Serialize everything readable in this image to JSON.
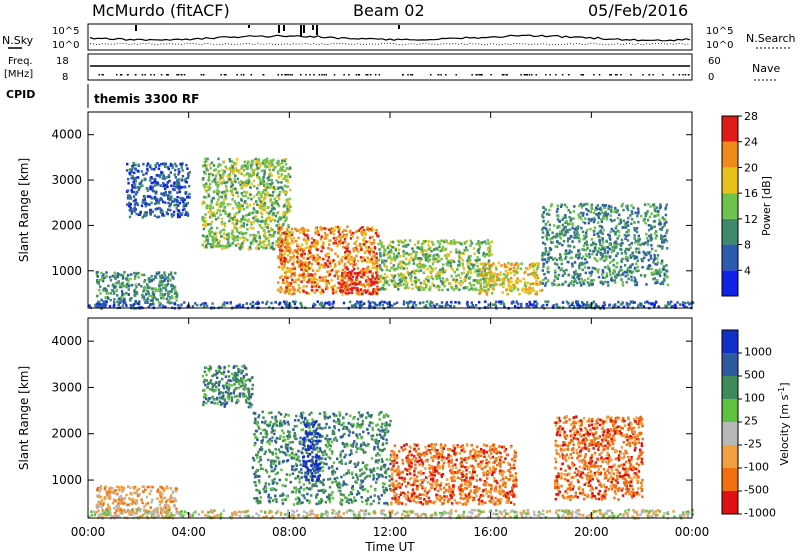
{
  "header": {
    "station": "McMurdo (fitACF)",
    "beam": "Beam 02",
    "date": "05/Feb/2016"
  },
  "top_panels": {
    "nsky_label": "N.Sky",
    "nsky_ticks": [
      "10^5",
      "10^0"
    ],
    "nsearch_label": "N.Search",
    "nsearch_ticks": [
      "10^5",
      "10^0"
    ],
    "freq_label_line1": "Freq.",
    "freq_label_line2": "[MHz]",
    "freq_ticks": [
      "18",
      "8"
    ],
    "nave_label": "Nave",
    "nave_ticks": [
      "60",
      "0"
    ],
    "cpid_label": "CPID",
    "cpid_value": "themis 3300 RF"
  },
  "chart_data": [
    {
      "type": "heatmap",
      "name": "power-panel",
      "ylabel": "Slant Range [km]",
      "xlabel": "",
      "ylim": [
        180,
        4500
      ],
      "xlim": [
        0,
        24
      ],
      "yticks": [
        "1000",
        "2000",
        "3000",
        "4000"
      ],
      "colorbar": {
        "label": "Power [dB]",
        "ticks": [
          "4",
          "8",
          "12",
          "16",
          "20",
          "24",
          "28"
        ],
        "colors": [
          "#1022e6",
          "#2d5cae",
          "#3e8a6a",
          "#6cc24a",
          "#e8c21a",
          "#f08a1a",
          "#e11a1a"
        ]
      },
      "regions": [
        {
          "t0": 0.3,
          "t1": 3.5,
          "r0": 300,
          "r1": 1000,
          "level": 2
        },
        {
          "t0": 1.5,
          "t1": 4.0,
          "r0": 2200,
          "r1": 3400,
          "level": 1
        },
        {
          "t0": 4.5,
          "t1": 8.0,
          "r0": 1500,
          "r1": 3500,
          "level": 3
        },
        {
          "t0": 7.5,
          "t1": 11.5,
          "r0": 500,
          "r1": 2000,
          "level": 5
        },
        {
          "t0": 10.0,
          "t1": 11.5,
          "r0": 500,
          "r1": 1000,
          "level": 6
        },
        {
          "t0": 11.5,
          "t1": 16.0,
          "r0": 600,
          "r1": 1700,
          "level": 3
        },
        {
          "t0": 15.5,
          "t1": 18.0,
          "r0": 500,
          "r1": 1200,
          "level": 4
        },
        {
          "t0": 18.0,
          "t1": 23.0,
          "r0": 700,
          "r1": 2500,
          "level": 2
        },
        {
          "t0": 0.0,
          "t1": 24.0,
          "r0": 200,
          "r1": 350,
          "level": 1
        }
      ]
    },
    {
      "type": "heatmap",
      "name": "velocity-panel",
      "ylabel": "Slant Range [km]",
      "xlabel": "Time UT",
      "ylim": [
        180,
        4500
      ],
      "xlim": [
        0,
        24
      ],
      "yticks": [
        "1000",
        "2000",
        "3000",
        "4000"
      ],
      "xticks": [
        "00:00",
        "04:00",
        "08:00",
        "12:00",
        "16:00",
        "20:00",
        "00:00"
      ],
      "colorbar": {
        "label": "Velocity [m s^-1]",
        "ticks": [
          "1000",
          "500",
          "100",
          "25",
          "-25",
          "-100",
          "-500",
          "-1000"
        ],
        "colors": [
          "#1030c8",
          "#2f5a9e",
          "#3f8a5a",
          "#60c040",
          "#b8b8b8",
          "#f0a040",
          "#f07010",
          "#e01010"
        ]
      },
      "regions": [
        {
          "t0": 0.3,
          "t1": 3.5,
          "r0": 300,
          "r1": 900,
          "level": 5
        },
        {
          "t0": 4.5,
          "t1": 6.5,
          "r0": 2600,
          "r1": 3500,
          "level": 2
        },
        {
          "t0": 6.5,
          "t1": 12.0,
          "r0": 500,
          "r1": 2500,
          "level": 2
        },
        {
          "t0": 8.5,
          "t1": 9.2,
          "r0": 1000,
          "r1": 2300,
          "level": 0
        },
        {
          "t0": 12.0,
          "t1": 17.0,
          "r0": 500,
          "r1": 1800,
          "level": 6
        },
        {
          "t0": 18.5,
          "t1": 22.0,
          "r0": 600,
          "r1": 2400,
          "level": 6
        },
        {
          "t0": 0.0,
          "t1": 24.0,
          "r0": 200,
          "r1": 380,
          "level": 4
        }
      ]
    }
  ]
}
